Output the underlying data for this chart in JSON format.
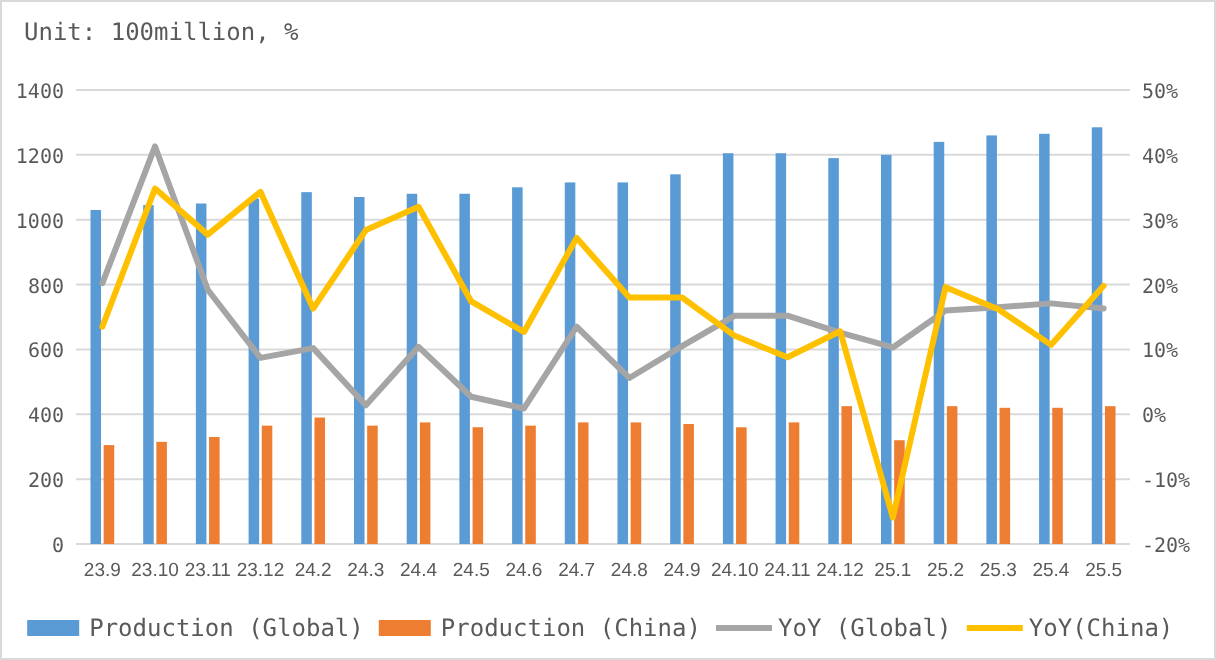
{
  "chart_data": {
    "type": "bar",
    "title": "Unit: 100million, %",
    "categories": [
      "23.9",
      "23.10",
      "23.11",
      "23.12",
      "24.2",
      "24.3",
      "24.4",
      "24.5",
      "24.6",
      "24.7",
      "24.8",
      "24.9",
      "24.10",
      "24.11",
      "24.12",
      "25.1",
      "25.2",
      "25.3",
      "25.4",
      "25.5"
    ],
    "series": [
      {
        "name": "Production (Global)",
        "color": "#5b9bd5",
        "values": [
          1030,
          1045,
          1050,
          1065,
          1085,
          1070,
          1080,
          1080,
          1100,
          1115,
          1115,
          1140,
          1205,
          1205,
          1190,
          1200,
          1240,
          1260,
          1265,
          1285
        ]
      },
      {
        "name": "Production (China)",
        "color": "#ed7d31",
        "values": [
          305,
          315,
          330,
          365,
          390,
          365,
          375,
          360,
          365,
          375,
          375,
          370,
          360,
          375,
          425,
          320,
          425,
          420,
          420,
          425
        ]
      },
      {
        "name": "YoY (Global)",
        "type": "line",
        "axis": "y2",
        "color": "#a5a5a5",
        "values": [
          20.2,
          41.3,
          19.2,
          8.7,
          10.2,
          1.4,
          10.4,
          2.7,
          0.9,
          13.5,
          5.6,
          10.5,
          15.2,
          15.2,
          12.6,
          10.3,
          16,
          16.5,
          17.1,
          16.3
        ]
      },
      {
        "name": "YoY(China)",
        "type": "line",
        "axis": "y2",
        "color": "#ffc000",
        "values": [
          13.5,
          34.8,
          27.7,
          34.3,
          16.3,
          28.4,
          32,
          17.4,
          12.7,
          27.2,
          18,
          18,
          12.1,
          8.8,
          12.8,
          -15.9,
          19.6,
          16.2,
          10.7,
          19.8
        ]
      }
    ],
    "ylim": [
      0,
      1400
    ],
    "yticks": [
      0,
      200,
      400,
      600,
      800,
      1000,
      1200,
      1400
    ],
    "y2lim": [
      -20,
      50
    ],
    "y2ticks": [
      {
        "value": -20,
        "label": "-20%"
      },
      {
        "value": -10,
        "label": "-10%"
      },
      {
        "value": 0,
        "label": "0%"
      },
      {
        "value": 10,
        "label": "10%"
      },
      {
        "value": 20,
        "label": "20%"
      },
      {
        "value": 30,
        "label": "30%"
      },
      {
        "value": 40,
        "label": "40%"
      },
      {
        "value": 50,
        "label": "50%"
      }
    ],
    "grid": "y",
    "legend": "bottom",
    "marker": "none",
    "line_style": "solid"
  }
}
